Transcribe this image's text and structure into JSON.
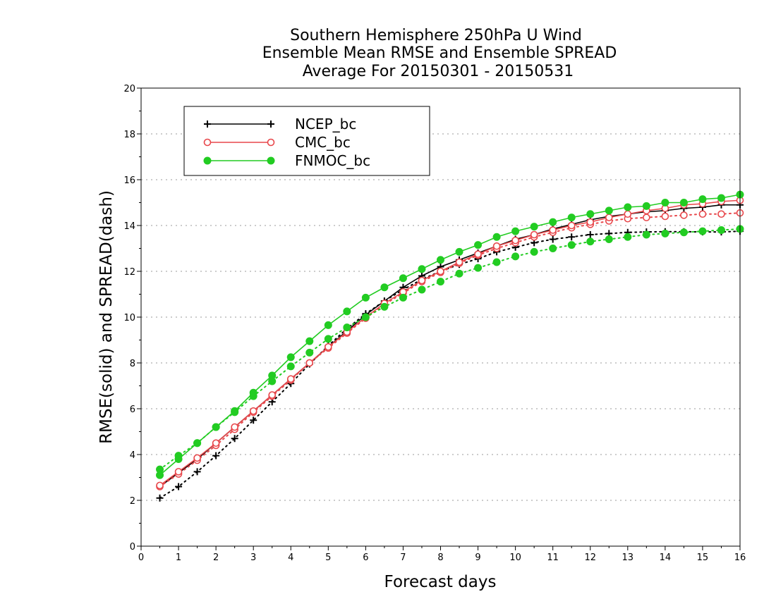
{
  "chart_data": {
    "type": "line",
    "title": [
      "Southern Hemisphere 250hPa U Wind",
      "Ensemble Mean RMSE and Ensemble SPREAD",
      "Average For 20150301 - 20150531"
    ],
    "xlabel": "Forecast days",
    "ylabel": "RMSE(solid) and SPREAD(dash)",
    "xlim": [
      0,
      16
    ],
    "ylim": [
      0,
      20
    ],
    "xticks": [
      "0",
      "1",
      "2",
      "3",
      "4",
      "5",
      "6",
      "7",
      "8",
      "9",
      "10",
      "11",
      "12",
      "13",
      "14",
      "15",
      "16"
    ],
    "yticks": [
      "0",
      "2",
      "4",
      "6",
      "8",
      "10",
      "12",
      "14",
      "16",
      "18",
      "20"
    ],
    "grid": true,
    "legend_position": "top-left",
    "x": [
      0.5,
      1,
      1.5,
      2,
      2.5,
      3,
      3.5,
      4,
      4.5,
      5,
      5.5,
      6,
      6.5,
      7,
      7.5,
      8,
      8.5,
      9,
      9.5,
      10,
      10.5,
      11,
      11.5,
      12,
      12.5,
      13,
      13.5,
      14,
      14.5,
      15,
      15.5,
      16
    ],
    "series": [
      {
        "name": "NCEP_bc",
        "color": "#000000",
        "marker": "plus",
        "rmse": [
          2.6,
          3.2,
          3.8,
          4.5,
          5.2,
          5.9,
          6.6,
          7.3,
          8.0,
          8.7,
          9.4,
          10.1,
          10.7,
          11.3,
          11.8,
          12.2,
          12.5,
          12.8,
          13.1,
          13.4,
          13.6,
          13.85,
          14.05,
          14.25,
          14.4,
          14.5,
          14.6,
          14.65,
          14.75,
          14.8,
          14.9,
          14.9
        ],
        "spread": [
          2.1,
          2.6,
          3.25,
          3.95,
          4.7,
          5.5,
          6.3,
          7.1,
          7.95,
          8.75,
          9.5,
          10.15,
          10.7,
          11.2,
          11.65,
          12.0,
          12.3,
          12.55,
          12.85,
          13.05,
          13.25,
          13.4,
          13.5,
          13.6,
          13.65,
          13.7,
          13.72,
          13.73,
          13.73,
          13.72,
          13.72,
          13.75
        ]
      },
      {
        "name": "CMC_bc",
        "color": "#e8474b",
        "marker": "open-circle",
        "rmse": [
          2.65,
          3.25,
          3.85,
          4.5,
          5.2,
          5.9,
          6.6,
          7.3,
          8.0,
          8.7,
          9.35,
          10.0,
          10.6,
          11.1,
          11.6,
          12.0,
          12.4,
          12.75,
          13.1,
          13.35,
          13.6,
          13.8,
          14.0,
          14.15,
          14.35,
          14.5,
          14.65,
          14.75,
          14.9,
          14.95,
          15.05,
          15.1
        ],
        "spread": [
          2.6,
          3.15,
          3.75,
          4.4,
          5.1,
          5.85,
          6.55,
          7.25,
          8.0,
          8.65,
          9.3,
          9.95,
          10.55,
          11.05,
          11.55,
          11.95,
          12.35,
          12.7,
          13.0,
          13.25,
          13.5,
          13.7,
          13.9,
          14.05,
          14.2,
          14.3,
          14.35,
          14.4,
          14.45,
          14.5,
          14.5,
          14.55
        ]
      },
      {
        "name": "FNMOC_bc",
        "color": "#22cc22",
        "marker": "filled-circle",
        "rmse": [
          3.1,
          3.8,
          4.5,
          5.2,
          5.9,
          6.7,
          7.45,
          8.25,
          8.95,
          9.65,
          10.25,
          10.85,
          11.3,
          11.7,
          12.1,
          12.5,
          12.85,
          13.15,
          13.5,
          13.75,
          13.95,
          14.15,
          14.35,
          14.5,
          14.65,
          14.8,
          14.85,
          15.0,
          15.0,
          15.15,
          15.2,
          15.35
        ],
        "spread": [
          3.35,
          3.95,
          4.5,
          5.2,
          5.85,
          6.55,
          7.2,
          7.85,
          8.45,
          9.05,
          9.55,
          10.0,
          10.45,
          10.85,
          11.2,
          11.55,
          11.9,
          12.15,
          12.4,
          12.65,
          12.85,
          13.0,
          13.15,
          13.3,
          13.4,
          13.5,
          13.6,
          13.65,
          13.7,
          13.75,
          13.8,
          13.85
        ]
      }
    ]
  }
}
